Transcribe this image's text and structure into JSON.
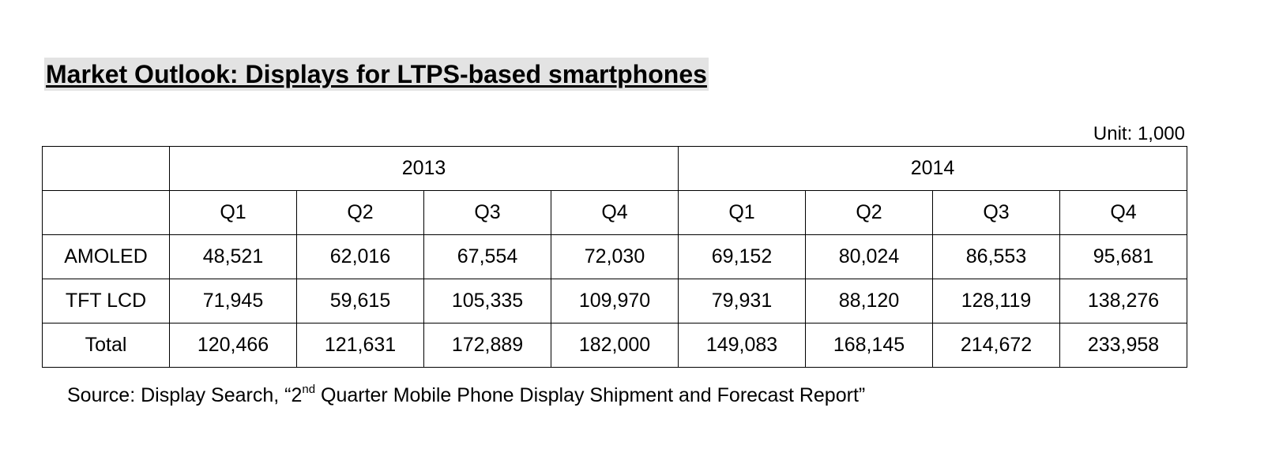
{
  "title": "Market Outlook: Displays for LTPS-based smartphones",
  "unit": "Unit: 1,000",
  "table": {
    "years": [
      "2013",
      "2014"
    ],
    "quarters": [
      "Q1",
      "Q2",
      "Q3",
      "Q4",
      "Q1",
      "Q2",
      "Q3",
      "Q4"
    ],
    "rows": [
      {
        "label": "AMOLED",
        "values": [
          "48,521",
          "62,016",
          "67,554",
          "72,030",
          "69,152",
          "80,024",
          "86,553",
          "95,681"
        ]
      },
      {
        "label": "TFT LCD",
        "values": [
          "71,945",
          "59,615",
          "105,335",
          "109,970",
          "79,931",
          "88,120",
          "128,119",
          "138,276"
        ]
      },
      {
        "label": "Total",
        "values": [
          "120,466",
          "121,631",
          "172,889",
          "182,000",
          "149,083",
          "168,145",
          "214,672",
          "233,958"
        ]
      }
    ]
  },
  "source": {
    "prefix": "Source: Display Search, “2",
    "superscript": "nd",
    "suffix": " Quarter Mobile Phone Display Shipment and Forecast Report”"
  }
}
